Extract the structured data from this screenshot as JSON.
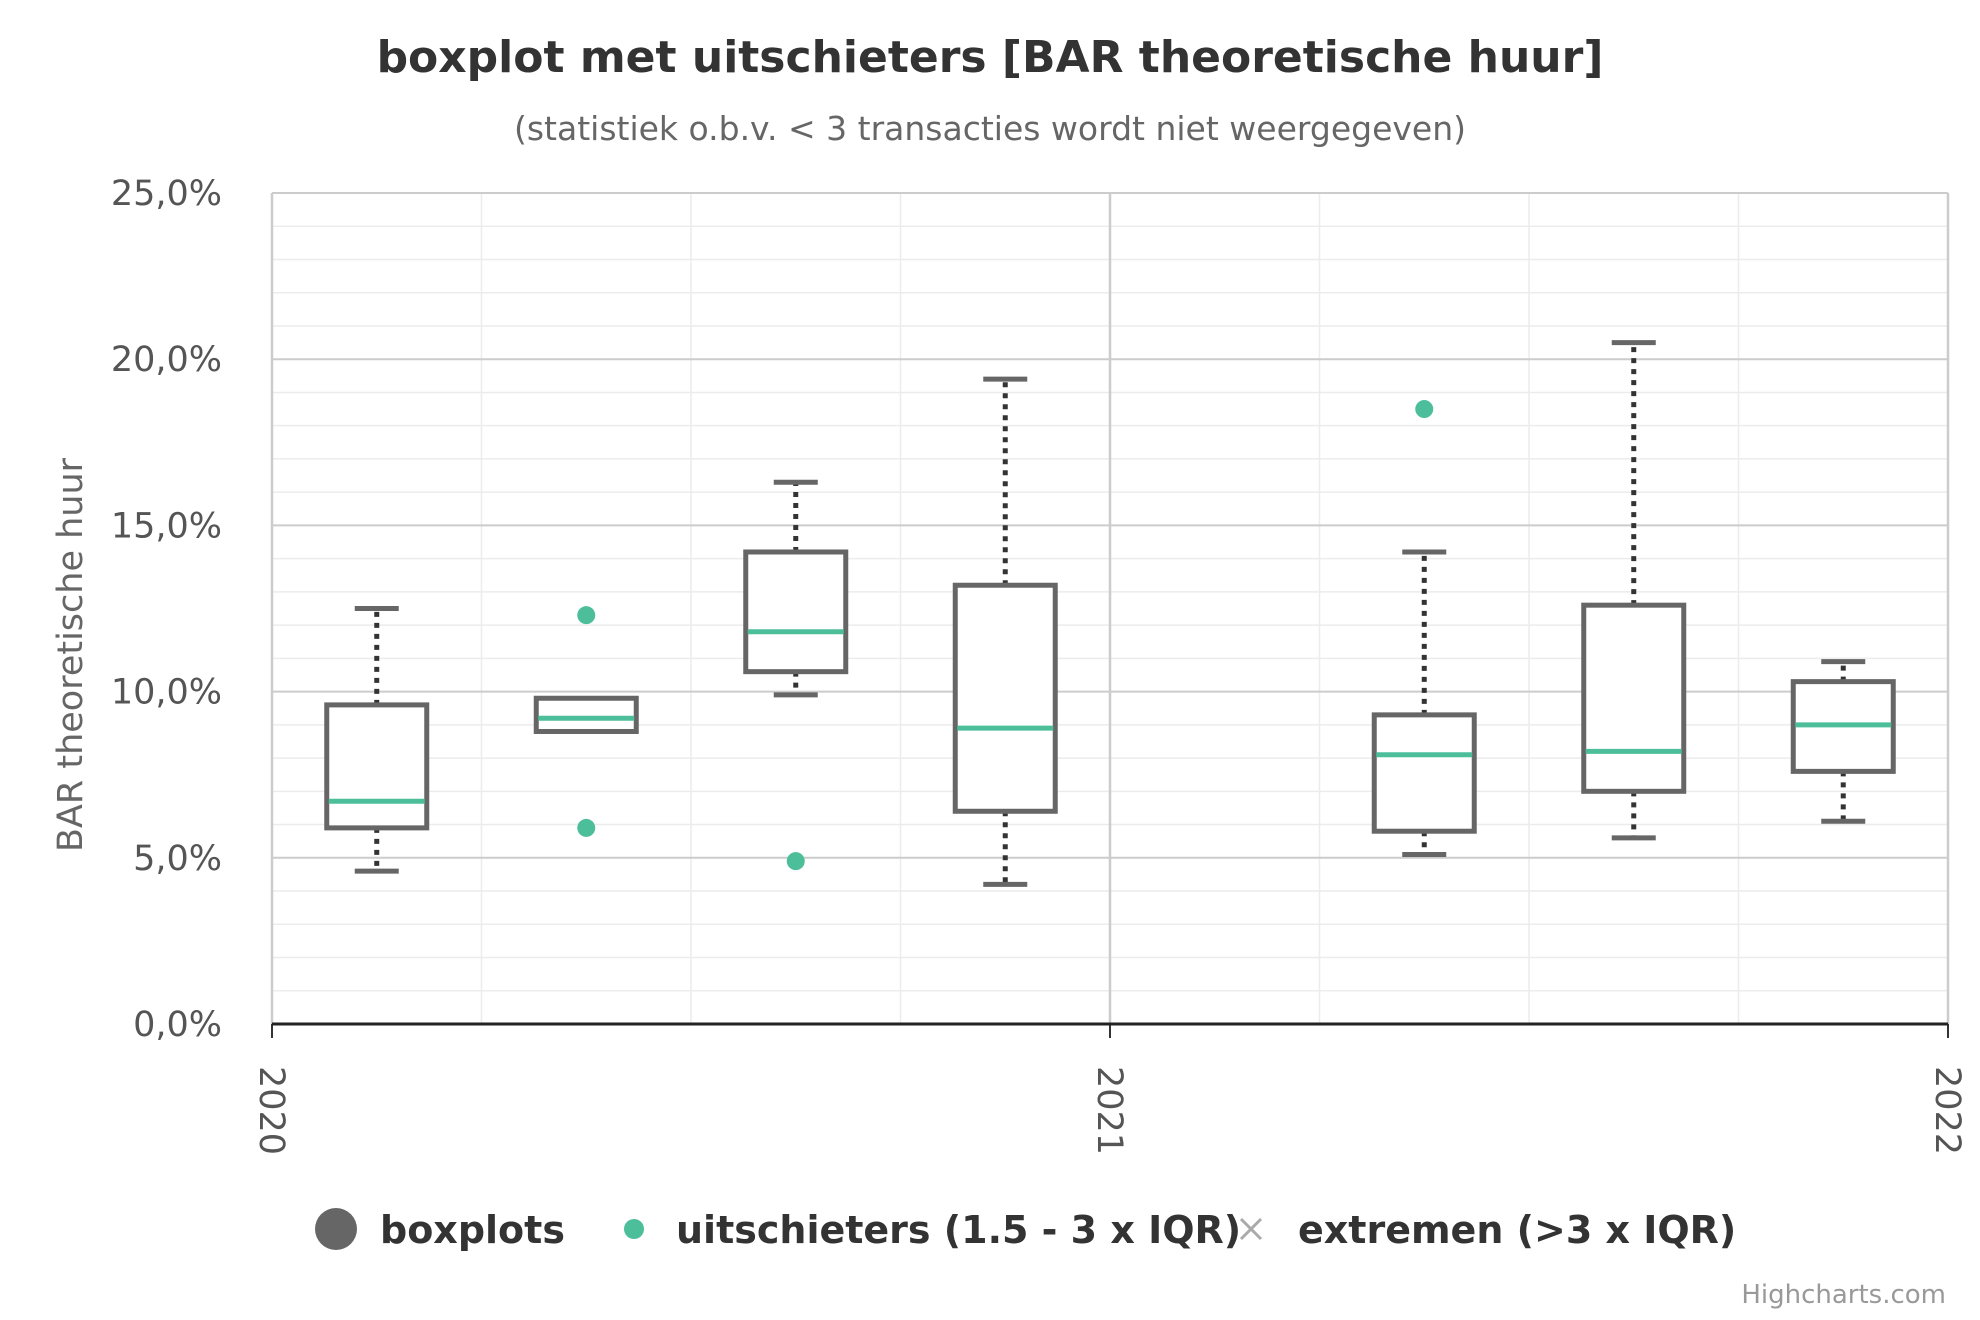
{
  "chart_data": {
    "type": "boxplot",
    "title": "boxplot met uitschieters [BAR theoretische huur]",
    "subtitle": "(statistiek o.b.v. < 3 transacties wordt niet weergegeven)",
    "ylabel": "BAR theoretische huur",
    "ylim": [
      0,
      25
    ],
    "yticks": [
      "0,0%",
      "5,0%",
      "10,0%",
      "15,0%",
      "20,0%",
      "25,0%"
    ],
    "xlim": [
      2020,
      2022
    ],
    "xticks": [
      "2020",
      "2021",
      "2022"
    ],
    "grid": true,
    "legend_position": "bottom",
    "colors": {
      "box": "#666666",
      "median": "#4cbf9a",
      "outlier": "#4cbf9a",
      "extreme": "#aaaaaa",
      "whisker": "#333333"
    },
    "series": [
      {
        "name": "boxplots",
        "legend_marker": "circle",
        "boxes": [
          {
            "x": 2020.125,
            "low": 4.6,
            "q1": 5.9,
            "median": 6.7,
            "q3": 9.6,
            "high": 12.5
          },
          {
            "x": 2020.375,
            "low": 8.8,
            "q1": 8.8,
            "median": 9.2,
            "q3": 9.8,
            "high": 9.8
          },
          {
            "x": 2020.625,
            "low": 9.9,
            "q1": 10.6,
            "median": 11.8,
            "q3": 14.2,
            "high": 16.3
          },
          {
            "x": 2020.875,
            "low": 4.2,
            "q1": 6.4,
            "median": 8.9,
            "q3": 13.2,
            "high": 19.4
          },
          {
            "x": 2021.375,
            "low": 5.1,
            "q1": 5.8,
            "median": 8.1,
            "q3": 9.3,
            "high": 14.2
          },
          {
            "x": 2021.625,
            "low": 5.6,
            "q1": 7.0,
            "median": 8.2,
            "q3": 12.6,
            "high": 20.5
          },
          {
            "x": 2021.875,
            "low": 6.1,
            "q1": 7.6,
            "median": 9.0,
            "q3": 10.3,
            "high": 10.9
          }
        ]
      },
      {
        "name": "uitschieters (1.5 - 3 x IQR)",
        "legend_marker": "dot",
        "points": [
          {
            "x": 2020.375,
            "y": 12.3
          },
          {
            "x": 2020.375,
            "y": 5.9
          },
          {
            "x": 2020.625,
            "y": 4.9
          },
          {
            "x": 2021.375,
            "y": 18.5
          }
        ]
      },
      {
        "name": "extremen (>3 x IQR)",
        "legend_marker": "cross",
        "points": []
      }
    ]
  },
  "credits": "Highcharts.com"
}
